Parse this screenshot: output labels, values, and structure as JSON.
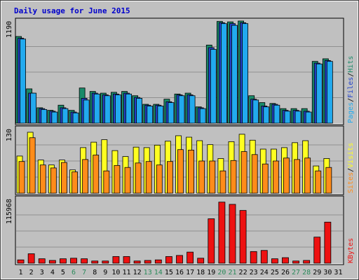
{
  "chart_data": {
    "type": "bar",
    "title": "Daily usage for June 2015",
    "categories": [
      "1",
      "2",
      "3",
      "4",
      "5",
      "6",
      "7",
      "8",
      "9",
      "10",
      "11",
      "12",
      "13",
      "14",
      "15",
      "16",
      "17",
      "18",
      "19",
      "20",
      "21",
      "22",
      "23",
      "24",
      "25",
      "26",
      "27",
      "28",
      "29",
      "30",
      "31"
    ],
    "weekend_days": [
      "6",
      "7",
      "13",
      "14",
      "20",
      "21",
      "27",
      "28"
    ],
    "colors": {
      "background": "#c0c0c0",
      "panel_border": "#000000",
      "title": "#0000cc",
      "weekday_label": "#000000",
      "weekend_label": "#2a8a5a",
      "hits": "#1a8a6a",
      "files": "#2244cc",
      "pages": "#22aaee",
      "visits": "#ffff22",
      "sites": "#ff8c1a",
      "kbytes": "#ee1111",
      "gridline": "#909090"
    },
    "panels": [
      {
        "id": "hits-files-pages",
        "max_label": "1190",
        "ylim": [
          0,
          1190
        ],
        "legend": [
          {
            "text": "Pages",
            "color": "#22aaee"
          },
          {
            "text": "/",
            "color": "#000000"
          },
          {
            "text": "Files",
            "color": "#2244cc"
          },
          {
            "text": "/",
            "color": "#000000"
          },
          {
            "text": "Hits",
            "color": "#1a8a6a"
          }
        ],
        "series": [
          {
            "name": "Hits",
            "color": "#1a8a6a",
            "values": [
              1010,
              400,
              180,
              150,
              210,
              150,
              410,
              370,
              350,
              360,
              370,
              320,
              220,
              220,
              280,
              340,
              350,
              190,
              910,
              1185,
              1180,
              1190,
              320,
              240,
              230,
              170,
              170,
              170,
              720,
              750,
              0
            ]
          },
          {
            "name": "Files",
            "color": "#2244cc",
            "values": [
              990,
              350,
              170,
              140,
              180,
              130,
              290,
              350,
              330,
              340,
              350,
              300,
              210,
              210,
              250,
              330,
              330,
              180,
              880,
              1170,
              1160,
              1170,
              280,
              200,
              220,
              150,
              150,
              140,
              700,
              730,
              0
            ]
          },
          {
            "name": "Pages",
            "color": "#22aaee",
            "values": [
              980,
              350,
              160,
              130,
              170,
              120,
              270,
              340,
              320,
              330,
              340,
              290,
              200,
              200,
              240,
              320,
              320,
              170,
              860,
              1160,
              1140,
              1160,
              270,
              190,
              210,
              140,
              140,
              130,
              690,
              720,
              0
            ]
          }
        ]
      },
      {
        "id": "visits-sites",
        "max_label": "130",
        "ylim": [
          0,
          130
        ],
        "legend": [
          {
            "text": "Sites",
            "color": "#ff8c1a"
          },
          {
            "text": "/",
            "color": "#000000"
          },
          {
            "text": "Visits",
            "color": "#ffff22"
          }
        ],
        "series": [
          {
            "name": "Visits",
            "color": "#ffff22",
            "values": [
              75,
              123,
              67,
              57,
              67,
              47,
              92,
              103,
              108,
              86,
              74,
              93,
              92,
              97,
              105,
              116,
              113,
              106,
              98,
              70,
              104,
              119,
              107,
              89,
              89,
              92,
              102,
              106,
              55,
              70,
              0
            ]
          },
          {
            "name": "Sites",
            "color": "#ff8c1a",
            "values": [
              64,
              112,
              57,
              51,
              62,
              43,
              68,
              77,
              45,
              56,
              52,
              61,
              64,
              57,
              64,
              88,
              87,
              65,
              65,
              45,
              66,
              84,
              78,
              59,
              65,
              71,
              68,
              71,
              45,
              52,
              0
            ]
          }
        ]
      },
      {
        "id": "kbytes",
        "max_label": "115968",
        "ylim": [
          0,
          115968
        ],
        "legend": [
          {
            "text": "KBytes",
            "color": "#ee1111"
          }
        ],
        "series": [
          {
            "name": "KBytes",
            "color": "#ee1111",
            "values": [
              6000,
              17000,
              8000,
              5000,
              8000,
              9000,
              8000,
              4000,
              4000,
              12000,
              12000,
              4000,
              5000,
              6000,
              12000,
              14000,
              20000,
              9000,
              80000,
              110000,
              106000,
              95000,
              21000,
              23000,
              8000,
              10000,
              4000,
              5000,
              47000,
              74000,
              0
            ]
          }
        ]
      }
    ]
  }
}
